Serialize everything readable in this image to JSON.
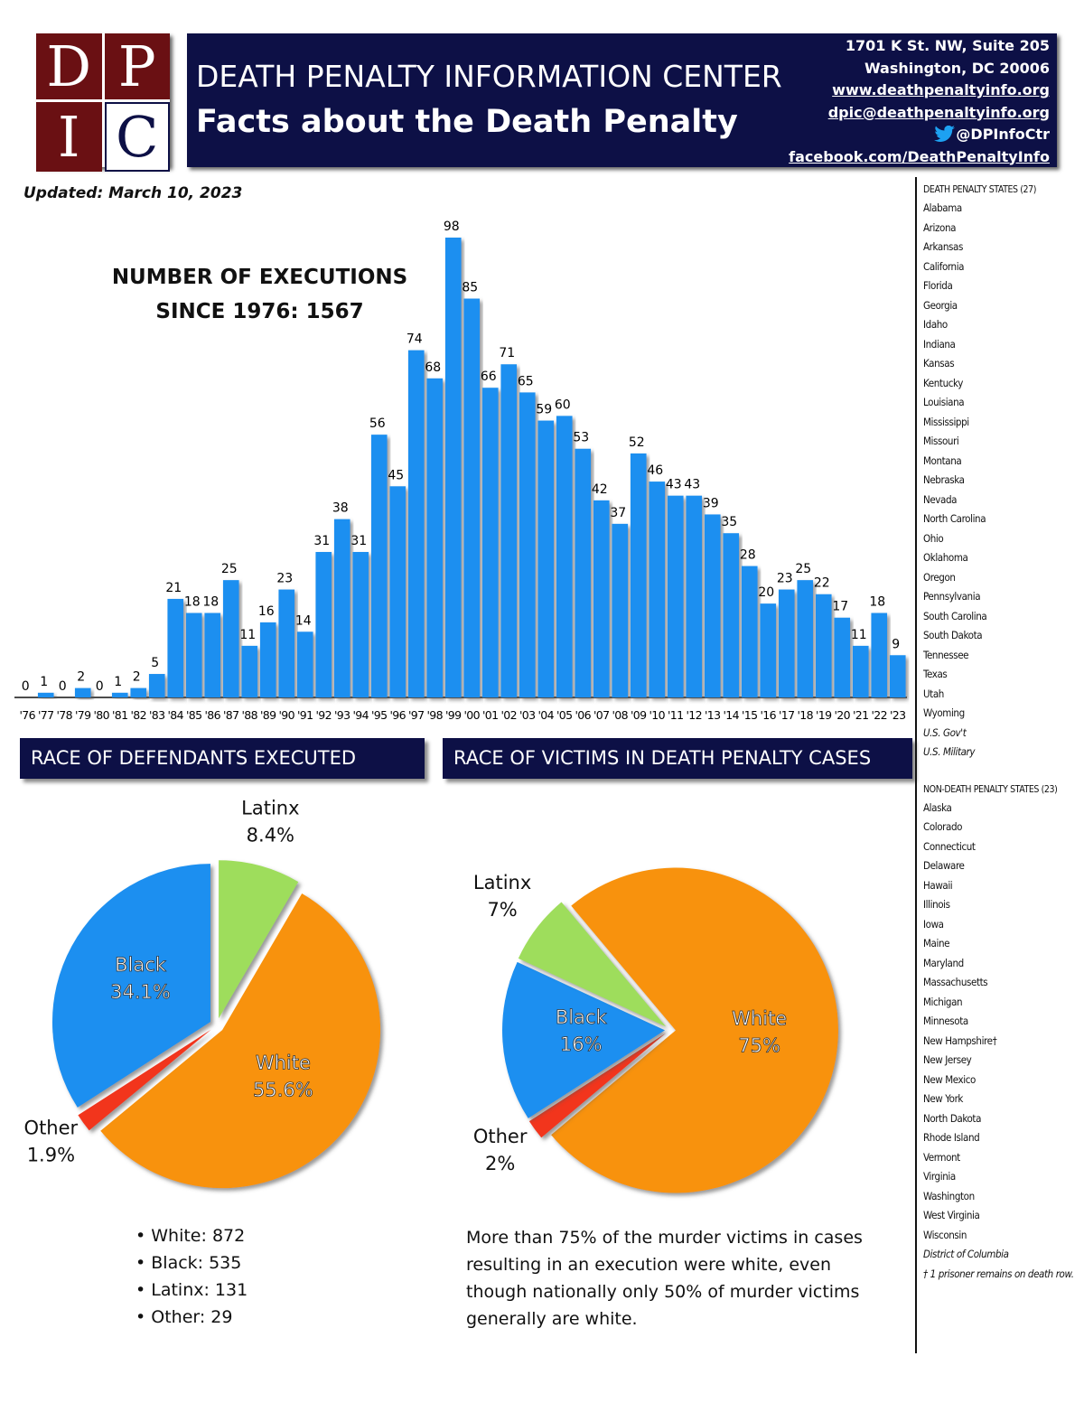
{
  "header": {
    "logo": [
      "D",
      "P",
      "I",
      "C"
    ],
    "title": "DEATH PENALTY INFORMATION CENTER",
    "subtitle": "Facts about the Death Penalty",
    "contact": [
      "1701 K St. NW, Suite 205",
      "Washington, DC 20006",
      "www.deathpenaltyinfo.org",
      "dpic@deathpenaltyinfo.org",
      "@DPInfoCtr",
      "facebook.com/DeathPenaltyInfo"
    ]
  },
  "updated": "Updated: March 10, 2023",
  "chart_data": [
    {
      "type": "bar",
      "title": "NUMBER OF EXECUTIONS SINCE 1976: 1567",
      "categories": [
        "'76",
        "'77",
        "'78",
        "'79",
        "'80",
        "'81",
        "'82",
        "'83",
        "'84",
        "'85",
        "'86",
        "'87",
        "'88",
        "'89",
        "'90",
        "'91",
        "'92",
        "'93",
        "'94",
        "'95",
        "'96",
        "'97",
        "'98",
        "'99",
        "'00",
        "'01",
        "'02",
        "'03",
        "'04",
        "'05",
        "'06",
        "'07",
        "'08",
        "'09",
        "'10",
        "'11",
        "'12",
        "'13",
        "'14",
        "'15",
        "'16",
        "'17",
        "'18",
        "'19",
        "'20",
        "'21",
        "'22",
        "'23"
      ],
      "values": [
        0,
        1,
        0,
        2,
        0,
        1,
        2,
        5,
        21,
        18,
        18,
        25,
        11,
        16,
        23,
        14,
        31,
        38,
        31,
        56,
        45,
        74,
        68,
        98,
        85,
        66,
        71,
        65,
        59,
        60,
        53,
        42,
        37,
        52,
        46,
        43,
        43,
        39,
        35,
        28,
        20,
        23,
        25,
        22,
        17,
        11,
        18,
        9
      ],
      "color": "#1b8ff0"
    },
    {
      "type": "pie",
      "title": "RACE OF DEFENDANTS EXECUTED",
      "categories": [
        "Latinx",
        "White",
        "Other",
        "Black"
      ],
      "values": [
        8.4,
        55.6,
        1.9,
        34.1
      ],
      "value_labels": [
        "8.4%",
        "55.6%",
        "1.9%",
        "34.1%"
      ],
      "colors": [
        "#9edd5c",
        "#f8920e",
        "#f2361f",
        "#1b8ff0"
      ]
    },
    {
      "type": "pie",
      "title": "RACE OF VICTIMS IN DEATH PENALTY CASES",
      "categories": [
        "White",
        "Other",
        "Black",
        "Latinx"
      ],
      "values": [
        75,
        2,
        16,
        7
      ],
      "value_labels": [
        "75%",
        "2%",
        "16%",
        "7%"
      ],
      "colors": [
        "#f8920e",
        "#f2361f",
        "#1b8ff0",
        "#9edd5c"
      ]
    }
  ],
  "defendant_counts": [
    "White: 872",
    "Black: 535",
    "Latinx: 131",
    "Other: 29"
  ],
  "victim_note": "More than 75% of the murder victims in cases resulting in an execution were white, even though nationally only 50% of murder victims generally are white.",
  "death_penalty_states": {
    "heading": "DEATH PENALTY STATES (27)",
    "items": [
      "Alabama",
      "Arizona",
      "Arkansas",
      "California",
      "Florida",
      "Georgia",
      "Idaho",
      "Indiana",
      "Kansas",
      "Kentucky",
      "Louisiana",
      "Mississippi",
      "Missouri",
      "Montana",
      "Nebraska",
      "Nevada",
      "North Carolina",
      "Ohio",
      "Oklahoma",
      "Oregon",
      "Pennsylvania",
      "South Carolina",
      "South Dakota",
      "Tennessee",
      "Texas",
      "Utah",
      "Wyoming"
    ],
    "federal": [
      "U.S. Gov't",
      "U.S. Military"
    ]
  },
  "non_death_penalty_states": {
    "heading": "NON-DEATH PENALTY STATES (23)",
    "items": [
      "Alaska",
      "Colorado",
      "Connecticut",
      "Delaware",
      "Hawaii",
      "Illinois",
      "Iowa",
      "Maine",
      "Maryland",
      "Massachusetts",
      "Michigan",
      "Minnesota",
      "New Hampshire†",
      "New Jersey",
      "New Mexico",
      "New York",
      "North Dakota",
      "Rhode Island",
      "Vermont",
      "Virginia",
      "Washington",
      "West Virginia",
      "Wisconsin"
    ],
    "district": "District of Columbia",
    "footnote": "† 1 prisoner remains on death row."
  }
}
